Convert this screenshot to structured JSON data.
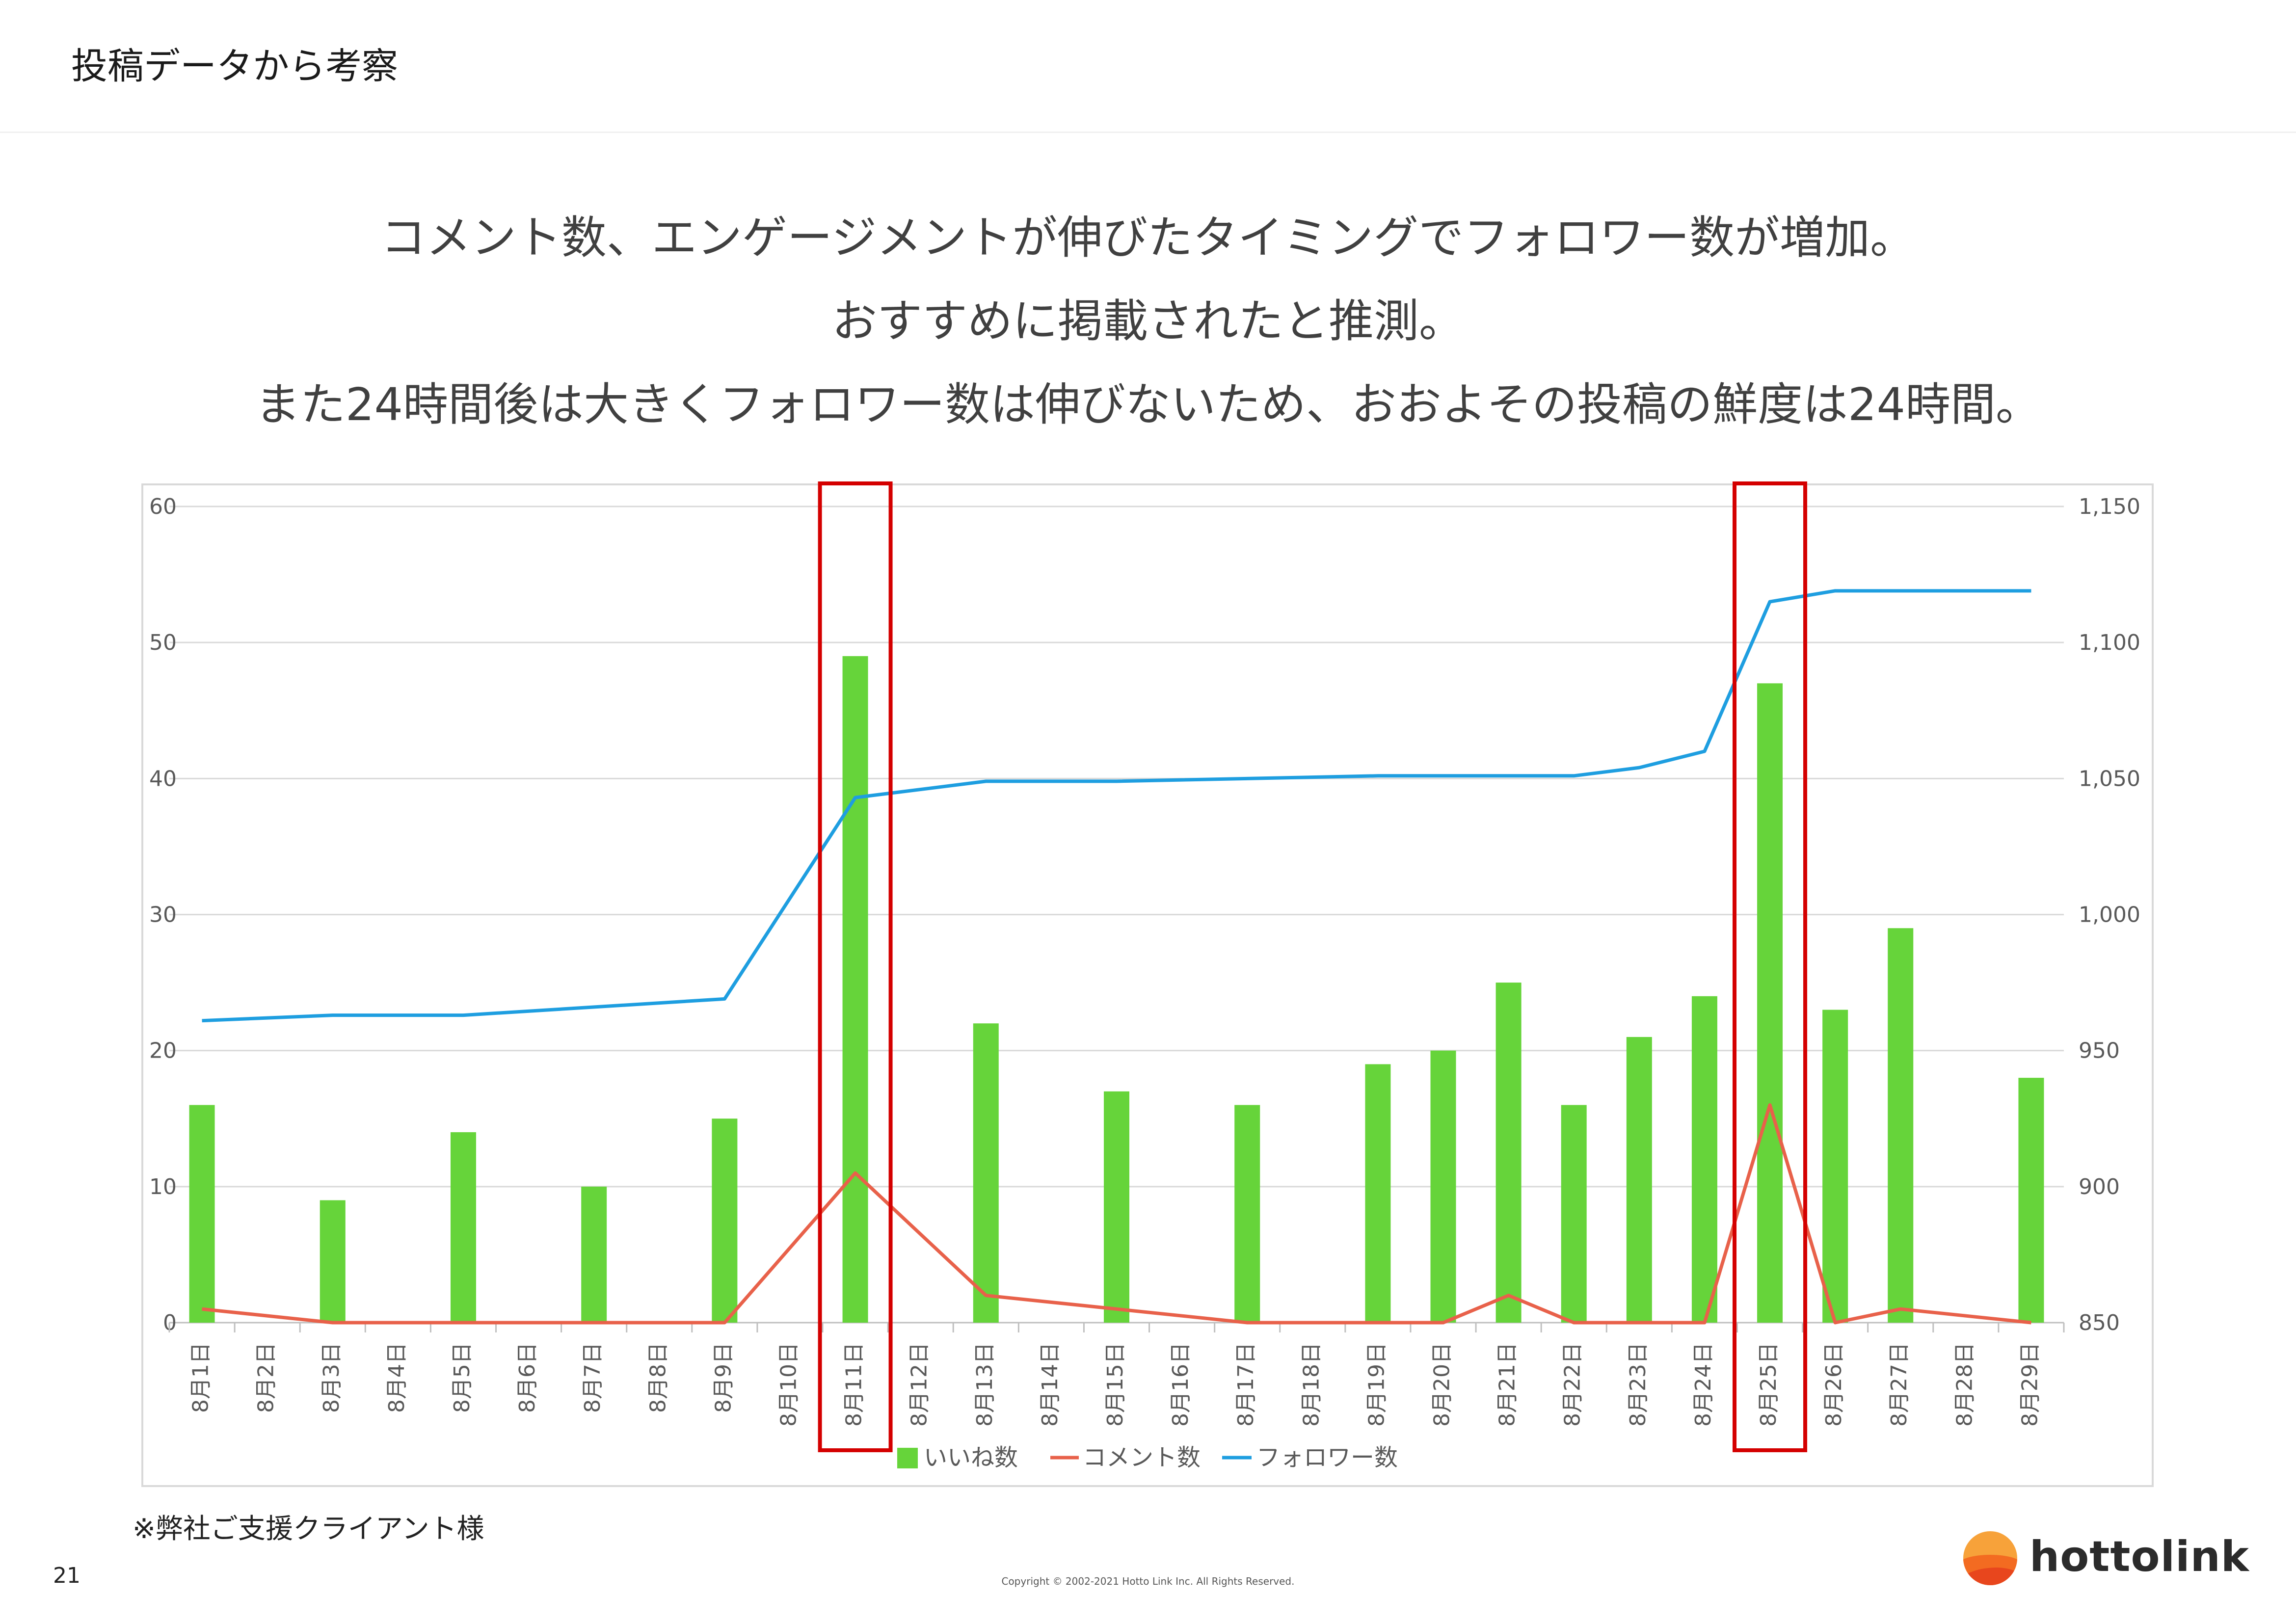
{
  "header": {
    "title": "投稿データから考察"
  },
  "headline": {
    "line1": "コメント数、エンゲージメントが伸びたタイミングでフォロワー数が増加。",
    "line2": "おすすめに掲載されたと推測。",
    "line3": "また24時間後は大きくフォロワー数は伸びないため、おおよその投稿の鮮度は24時間。"
  },
  "colors": {
    "likes": "#66d43a",
    "comments": "#e8614a",
    "followers": "#1e9ee0",
    "highlight": "#d40000"
  },
  "chart_data": {
    "type": "bar",
    "categories": [
      "8月1日",
      "8月2日",
      "8月3日",
      "8月4日",
      "8月5日",
      "8月6日",
      "8月7日",
      "8月8日",
      "8月9日",
      "8月10日",
      "8月11日",
      "8月12日",
      "8月13日",
      "8月14日",
      "8月15日",
      "8月16日",
      "8月17日",
      "8月18日",
      "8月19日",
      "8月20日",
      "8月21日",
      "8月22日",
      "8月23日",
      "8月24日",
      "8月25日",
      "8月26日",
      "8月27日",
      "8月28日",
      "8月29日"
    ],
    "series": [
      {
        "name": "いいね数",
        "type": "bar",
        "axis": "left",
        "values": [
          16,
          null,
          9,
          null,
          14,
          null,
          10,
          null,
          15,
          null,
          49,
          null,
          22,
          null,
          17,
          null,
          16,
          null,
          19,
          20,
          25,
          16,
          21,
          24,
          47,
          23,
          29,
          null,
          18
        ]
      },
      {
        "name": "コメント数",
        "type": "line",
        "axis": "left",
        "values": [
          1,
          null,
          0,
          null,
          0,
          null,
          0,
          null,
          0,
          null,
          11,
          null,
          2,
          null,
          null,
          null,
          0,
          null,
          0,
          0,
          2,
          0,
          0,
          0,
          16,
          0,
          1,
          null,
          0
        ]
      },
      {
        "name": "フォロワー数",
        "type": "line",
        "axis": "right",
        "values": [
          961,
          null,
          963,
          null,
          963,
          null,
          null,
          null,
          969,
          null,
          1043,
          null,
          1049,
          null,
          1049,
          null,
          null,
          null,
          1051,
          null,
          null,
          1051,
          1054,
          1060,
          1115,
          1119,
          null,
          null,
          1119
        ]
      }
    ],
    "ylim_left": [
      0,
      60
    ],
    "yticks_left": [
      "0",
      "10",
      "20",
      "30",
      "40",
      "50",
      "60"
    ],
    "ylim_right": [
      850,
      1150
    ],
    "yticks_right": [
      "850",
      "900",
      "950",
      "1,000",
      "1,050",
      "1,100",
      "1,150"
    ],
    "highlights": [
      "8月11日",
      "8月25日"
    ],
    "legend": "bottom",
    "grid": true
  },
  "footer": {
    "note": "※弊社ご支援クライアント様",
    "page_number": "21",
    "copyright": "Copyright © 2002-2021 Hotto Link Inc. All Rights Reserved.",
    "logo_text": "hottolink"
  }
}
